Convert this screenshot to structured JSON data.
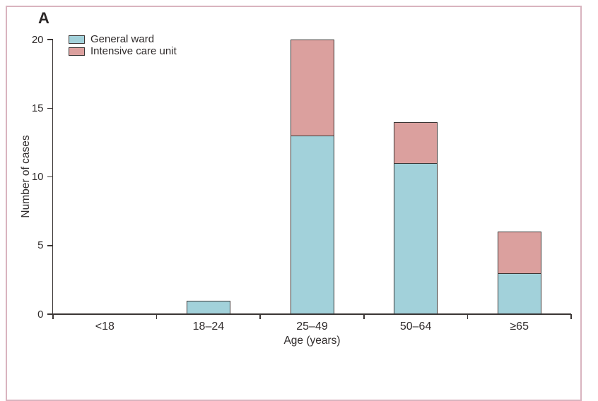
{
  "figure": {
    "panel_label": "A",
    "xlabel": "Age (years)",
    "ylabel": "Number of cases"
  },
  "colors": {
    "general_ward_fill": "#a2d1da",
    "intensive_care_fill": "#dba09e",
    "bar_and_axis_line": "#3a3534",
    "frame_border": "#d9b4bf",
    "text": "#2f2b2b",
    "background": "#ffffff"
  },
  "chart_data": {
    "type": "bar",
    "stacked": true,
    "title": "",
    "panel_label": "A",
    "categories": [
      "<18",
      "18–24",
      "25–49",
      "50–64",
      "≥65"
    ],
    "series": [
      {
        "name": "General ward",
        "color": "#a2d1da",
        "values": [
          0,
          1,
          13,
          11,
          3
        ]
      },
      {
        "name": "Intensive care unit",
        "color": "#dba09e",
        "values": [
          0,
          0,
          7,
          3,
          3
        ]
      }
    ],
    "stacked_totals": [
      0,
      1,
      20,
      14,
      6
    ],
    "xlabel": "Age (years)",
    "ylabel": "Number of cases",
    "ylim": [
      0,
      20
    ],
    "yticks": [
      0,
      5,
      10,
      15,
      20
    ],
    "grid": false,
    "legend_position": "top-left"
  }
}
